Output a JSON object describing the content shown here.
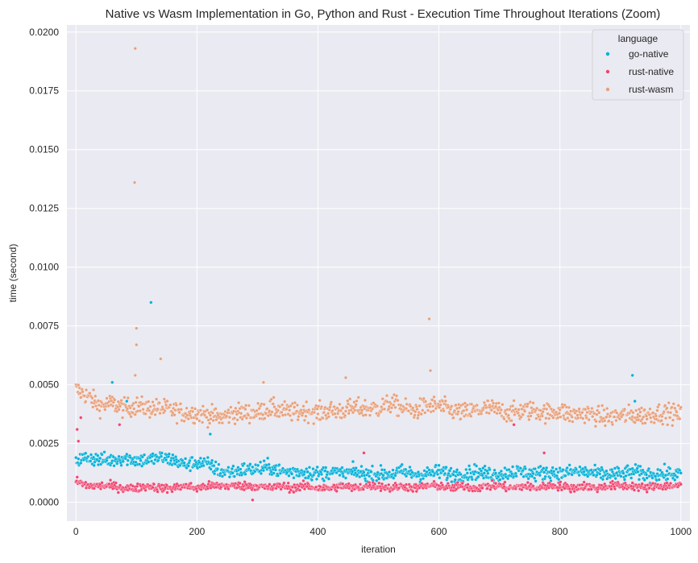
{
  "chart_data": {
    "type": "scatter",
    "title": "Native vs Wasm Implementation in Go, Python and Rust - Execution Time Throughout Iterations (Zoom)",
    "xlabel": "iteration",
    "ylabel": "time (second)",
    "xlim": [
      -15,
      1015
    ],
    "ylim": [
      -0.0008,
      0.0203
    ],
    "xticks": [
      0,
      200,
      400,
      600,
      800,
      1000
    ],
    "xtick_labels": [
      "0",
      "200",
      "400",
      "600",
      "800",
      "1000"
    ],
    "yticks": [
      0.0,
      0.0025,
      0.005,
      0.0075,
      0.01,
      0.0125,
      0.015,
      0.0175,
      0.02
    ],
    "ytick_labels": [
      "0.0000",
      "0.0025",
      "0.0050",
      "0.0075",
      "0.0100",
      "0.0125",
      "0.0150",
      "0.0175",
      "0.0200"
    ],
    "grid": true,
    "legend": {
      "title": "language",
      "placement": "top-right",
      "entries": [
        "go-native",
        "rust-native",
        "rust-wasm"
      ]
    },
    "colors": {
      "go-native": "#00b0d8",
      "rust-native": "#f0436e",
      "rust-wasm": "#e8a07a",
      "background": "#eaeaf2",
      "grid": "#ffffff"
    },
    "series": [
      {
        "name": "go-native",
        "x": [
          0,
          20,
          40,
          60,
          80,
          100,
          120,
          140,
          160,
          180,
          200,
          220,
          240,
          260,
          280,
          300,
          320,
          340,
          360,
          380,
          400,
          420,
          440,
          460,
          480,
          500,
          520,
          540,
          560,
          580,
          600,
          620,
          640,
          660,
          680,
          700,
          720,
          740,
          760,
          780,
          800,
          820,
          840,
          860,
          880,
          900,
          920,
          940,
          960,
          980,
          1000
        ],
        "y": [
          0.0018,
          0.0019,
          0.0018,
          0.0018,
          0.0019,
          0.0018,
          0.0018,
          0.0019,
          0.0018,
          0.0016,
          0.0017,
          0.0016,
          0.0013,
          0.0013,
          0.0014,
          0.0014,
          0.0015,
          0.0013,
          0.0013,
          0.0013,
          0.0012,
          0.0013,
          0.0012,
          0.0013,
          0.0012,
          0.0012,
          0.0012,
          0.0013,
          0.0012,
          0.0012,
          0.0013,
          0.0012,
          0.0012,
          0.0013,
          0.0012,
          0.0012,
          0.0013,
          0.0013,
          0.0012,
          0.0013,
          0.0012,
          0.0013,
          0.0013,
          0.0012,
          0.0012,
          0.0012,
          0.0013,
          0.0012,
          0.0012,
          0.0012,
          0.0012
        ],
        "outliers": [
          {
            "x": 124,
            "y": 0.0085
          },
          {
            "x": 920,
            "y": 0.0054
          },
          {
            "x": 924,
            "y": 0.0043
          },
          {
            "x": 222,
            "y": 0.0029
          },
          {
            "x": 84,
            "y": 0.0043
          },
          {
            "x": 60,
            "y": 0.0051
          }
        ]
      },
      {
        "name": "rust-native",
        "x": [
          0,
          20,
          40,
          60,
          80,
          100,
          120,
          140,
          160,
          180,
          200,
          220,
          240,
          260,
          280,
          300,
          320,
          340,
          360,
          380,
          400,
          420,
          440,
          460,
          480,
          500,
          520,
          540,
          560,
          580,
          600,
          620,
          640,
          660,
          680,
          700,
          720,
          740,
          760,
          780,
          800,
          820,
          840,
          860,
          880,
          900,
          920,
          940,
          960,
          980,
          1000
        ],
        "y": [
          0.0009,
          0.0007,
          0.0007,
          0.0007,
          0.0006,
          0.0006,
          0.0007,
          0.0006,
          0.0006,
          0.0007,
          0.0006,
          0.0007,
          0.0007,
          0.0007,
          0.0007,
          0.0007,
          0.0006,
          0.0007,
          0.0006,
          0.0007,
          0.0006,
          0.0006,
          0.0007,
          0.0006,
          0.0007,
          0.0007,
          0.0006,
          0.0007,
          0.0006,
          0.0007,
          0.0007,
          0.0006,
          0.0007,
          0.0006,
          0.0007,
          0.0007,
          0.0006,
          0.0007,
          0.0006,
          0.0007,
          0.0007,
          0.0006,
          0.0007,
          0.0006,
          0.0007,
          0.0007,
          0.0007,
          0.0006,
          0.0007,
          0.0007,
          0.0007
        ],
        "outliers": [
          {
            "x": 2,
            "y": 0.0031
          },
          {
            "x": 4,
            "y": 0.0026
          },
          {
            "x": 8,
            "y": 0.0036
          },
          {
            "x": 72,
            "y": 0.0033
          },
          {
            "x": 476,
            "y": 0.0021
          },
          {
            "x": 724,
            "y": 0.0033
          },
          {
            "x": 774,
            "y": 0.0021
          },
          {
            "x": 292,
            "y": 0.0001
          }
        ]
      },
      {
        "name": "rust-wasm",
        "x": [
          0,
          20,
          40,
          60,
          80,
          100,
          120,
          140,
          160,
          180,
          200,
          220,
          240,
          260,
          280,
          300,
          320,
          340,
          360,
          380,
          400,
          420,
          440,
          460,
          480,
          500,
          520,
          540,
          560,
          580,
          600,
          620,
          640,
          660,
          680,
          700,
          720,
          740,
          760,
          780,
          800,
          820,
          840,
          860,
          880,
          900,
          920,
          940,
          960,
          980,
          1000
        ],
        "y": [
          0.0048,
          0.0045,
          0.0041,
          0.0042,
          0.004,
          0.0041,
          0.004,
          0.004,
          0.0039,
          0.0038,
          0.0038,
          0.0037,
          0.0036,
          0.0038,
          0.0038,
          0.0038,
          0.004,
          0.0039,
          0.0038,
          0.0039,
          0.0038,
          0.0039,
          0.0039,
          0.004,
          0.004,
          0.004,
          0.0042,
          0.004,
          0.0039,
          0.0041,
          0.0041,
          0.0039,
          0.0038,
          0.0039,
          0.004,
          0.0039,
          0.0038,
          0.0039,
          0.0039,
          0.0038,
          0.0039,
          0.0037,
          0.0038,
          0.0037,
          0.0036,
          0.0037,
          0.0037,
          0.0037,
          0.0038,
          0.0038,
          0.0037
        ],
        "outliers": [
          {
            "x": 98,
            "y": 0.0193
          },
          {
            "x": 97,
            "y": 0.0136
          },
          {
            "x": 100,
            "y": 0.0074
          },
          {
            "x": 100,
            "y": 0.0067
          },
          {
            "x": 140,
            "y": 0.0061
          },
          {
            "x": 584,
            "y": 0.0078
          },
          {
            "x": 586,
            "y": 0.0056
          },
          {
            "x": 98,
            "y": 0.0054
          },
          {
            "x": 310,
            "y": 0.0051
          },
          {
            "x": 446,
            "y": 0.0053
          }
        ]
      }
    ]
  }
}
